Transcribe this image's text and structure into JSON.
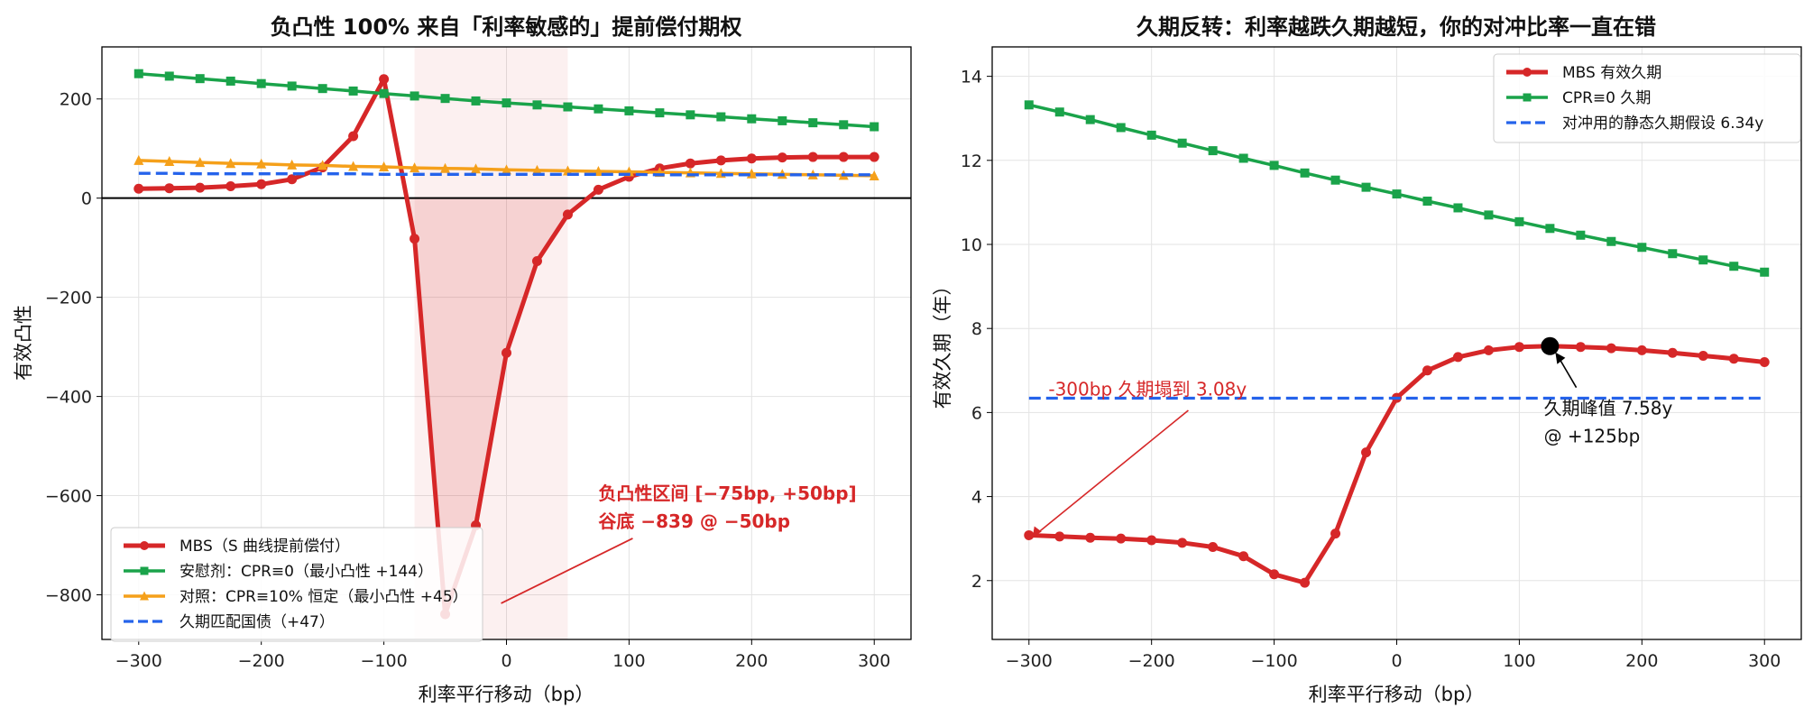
{
  "chart_data": [
    {
      "type": "line",
      "title": "负凸性 100% 来自「利率敏感的」提前偿付期权",
      "xlabel": "利率平行移动（bp）",
      "ylabel": "有效凸性",
      "xlim": [
        -330,
        330
      ],
      "ylim": [
        -890,
        305
      ],
      "xticks": [
        -300,
        -200,
        -100,
        0,
        100,
        200,
        300
      ],
      "yticks": [
        200,
        0,
        -200,
        -400,
        -600,
        -800
      ],
      "x": [
        -300,
        -275,
        -250,
        -225,
        -200,
        -175,
        -150,
        -125,
        -100,
        -75,
        -50,
        -25,
        0,
        25,
        50,
        75,
        100,
        125,
        150,
        175,
        200,
        225,
        250,
        275,
        300
      ],
      "series": [
        {
          "name": "MBS（S 曲线提前偿付）",
          "color": "#d62728",
          "marker": "circle",
          "values": [
            19,
            20,
            21,
            24,
            28,
            38,
            62,
            125,
            240,
            -82,
            -839,
            -660,
            -312,
            -127,
            -33,
            17,
            43,
            60,
            70,
            76,
            80,
            82,
            83,
            83,
            83
          ]
        },
        {
          "name": "安慰剂：CPR≡0（最小凸性 +144）",
          "color": "#1aa34a",
          "marker": "square",
          "values": [
            251,
            246,
            241,
            236,
            231,
            226,
            221,
            216,
            211,
            206,
            201,
            196,
            192,
            188,
            184,
            180,
            176,
            172,
            168,
            164,
            160,
            156,
            152,
            148,
            144
          ]
        },
        {
          "name": "对照：CPR≡10% 恒定（最小凸性 +45）",
          "color": "#f5a01a",
          "marker": "triangle",
          "values": [
            76,
            74,
            72,
            70,
            69,
            67,
            66,
            64,
            63,
            61,
            60,
            59,
            57,
            56,
            55,
            54,
            53,
            52,
            51,
            50,
            49,
            48,
            47,
            46,
            45
          ]
        },
        {
          "name": "久期匹配国债（+47）",
          "color": "#2563eb",
          "dashed": true,
          "values": [
            50,
            50,
            49,
            49,
            49,
            49,
            49,
            49,
            48,
            48,
            48,
            48,
            48,
            48,
            48,
            48,
            48,
            47,
            47,
            47,
            47,
            47,
            47,
            47,
            47
          ]
        }
      ],
      "shaded_range": [
        -75,
        50
      ],
      "zero_line": true,
      "grid": true,
      "legend": "bottom-left",
      "annotation": {
        "lines": [
          "负凸性区间 [−75bp, +50bp]",
          "谷底 −839 @ −50bp"
        ],
        "point": [
          -50,
          -839
        ],
        "text_at": [
          75,
          -608
        ],
        "color": "#d62728"
      }
    },
    {
      "type": "line",
      "title": "久期反转：利率越跌久期越短，你的对冲比率一直在错",
      "xlabel": "利率平行移动（bp）",
      "ylabel": "有效久期（年）",
      "xlim": [
        -330,
        330
      ],
      "ylim": [
        0.6,
        14.7
      ],
      "xticks": [
        -300,
        -200,
        -100,
        0,
        100,
        200,
        300
      ],
      "yticks": [
        14,
        12,
        10,
        8,
        6,
        4,
        2
      ],
      "x": [
        -300,
        -275,
        -250,
        -225,
        -200,
        -175,
        -150,
        -125,
        -100,
        -75,
        -50,
        -25,
        0,
        25,
        50,
        75,
        100,
        125,
        150,
        175,
        200,
        225,
        250,
        275,
        300
      ],
      "series": [
        {
          "name": "MBS 有效久期",
          "color": "#d62728",
          "marker": "circle",
          "values": [
            3.08,
            3.05,
            3.02,
            3.0,
            2.96,
            2.9,
            2.8,
            2.58,
            2.15,
            1.95,
            3.12,
            5.05,
            6.35,
            7.0,
            7.32,
            7.48,
            7.56,
            7.58,
            7.56,
            7.53,
            7.48,
            7.42,
            7.35,
            7.28,
            7.2
          ]
        },
        {
          "name": "CPR≡0 久期",
          "color": "#1aa34a",
          "marker": "square",
          "values": [
            13.32,
            13.15,
            12.97,
            12.78,
            12.6,
            12.41,
            12.23,
            12.05,
            11.88,
            11.7,
            11.53,
            11.36,
            11.2,
            11.03,
            10.87,
            10.7,
            10.54,
            10.38,
            10.22,
            10.07,
            9.93,
            9.78,
            9.63,
            9.48,
            9.34
          ]
        },
        {
          "name": "对冲用的静态久期假设 6.34y",
          "color": "#2563eb",
          "dashed": true,
          "constant": 6.34
        }
      ],
      "peak": {
        "x": 125,
        "y": 7.58
      },
      "grid": true,
      "legend": "top-right",
      "annotations": [
        {
          "text": "-300bp 久期塌到 3.08y",
          "point": [
            -300,
            3.08
          ],
          "text_at": [
            -290,
            6.4
          ],
          "color": "#d62728"
        },
        {
          "lines": [
            "久期峰值 7.58y",
            "@ +125bp"
          ],
          "point": [
            125,
            7.58
          ],
          "text_at": [
            120,
            5.95
          ],
          "color": "#111"
        }
      ]
    }
  ]
}
